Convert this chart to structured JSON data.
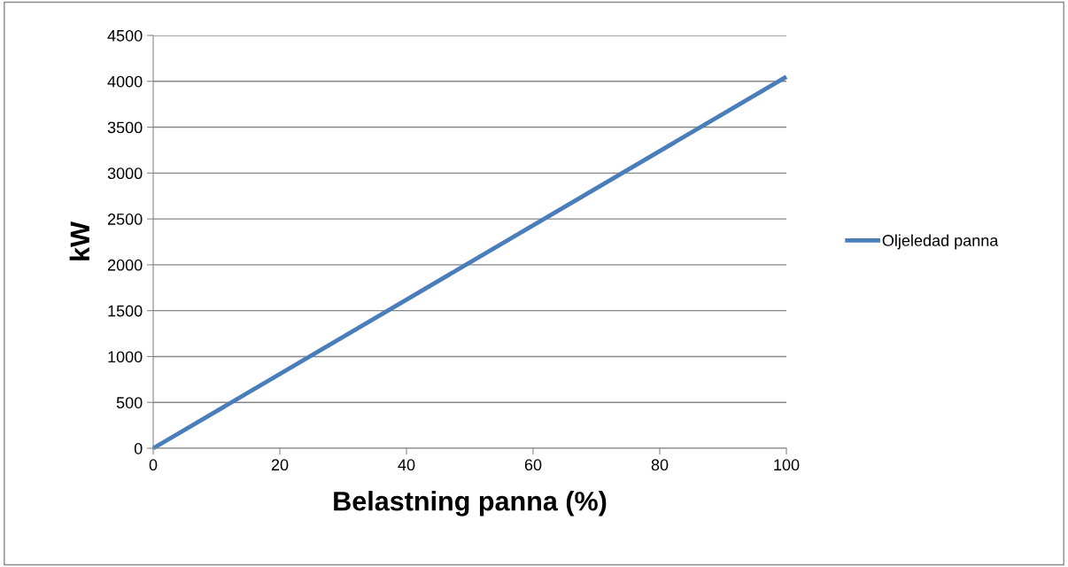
{
  "chart_data": {
    "type": "line",
    "xlabel": "Belastning panna (%)",
    "ylabel": "kW",
    "x": [
      0,
      100
    ],
    "series": [
      {
        "name": "Oljeledad panna",
        "color": "#4a7ebb",
        "values": [
          0,
          4050
        ]
      }
    ],
    "xlim": [
      0,
      100
    ],
    "xticks": [
      0,
      20,
      40,
      60,
      80,
      100
    ],
    "ylim": [
      0,
      4500
    ],
    "yticks": [
      0,
      500,
      1000,
      1500,
      2000,
      2500,
      3000,
      3500,
      4000,
      4500
    ],
    "grid": "y",
    "legend": "right",
    "marker": "none",
    "line_style": "solid"
  }
}
